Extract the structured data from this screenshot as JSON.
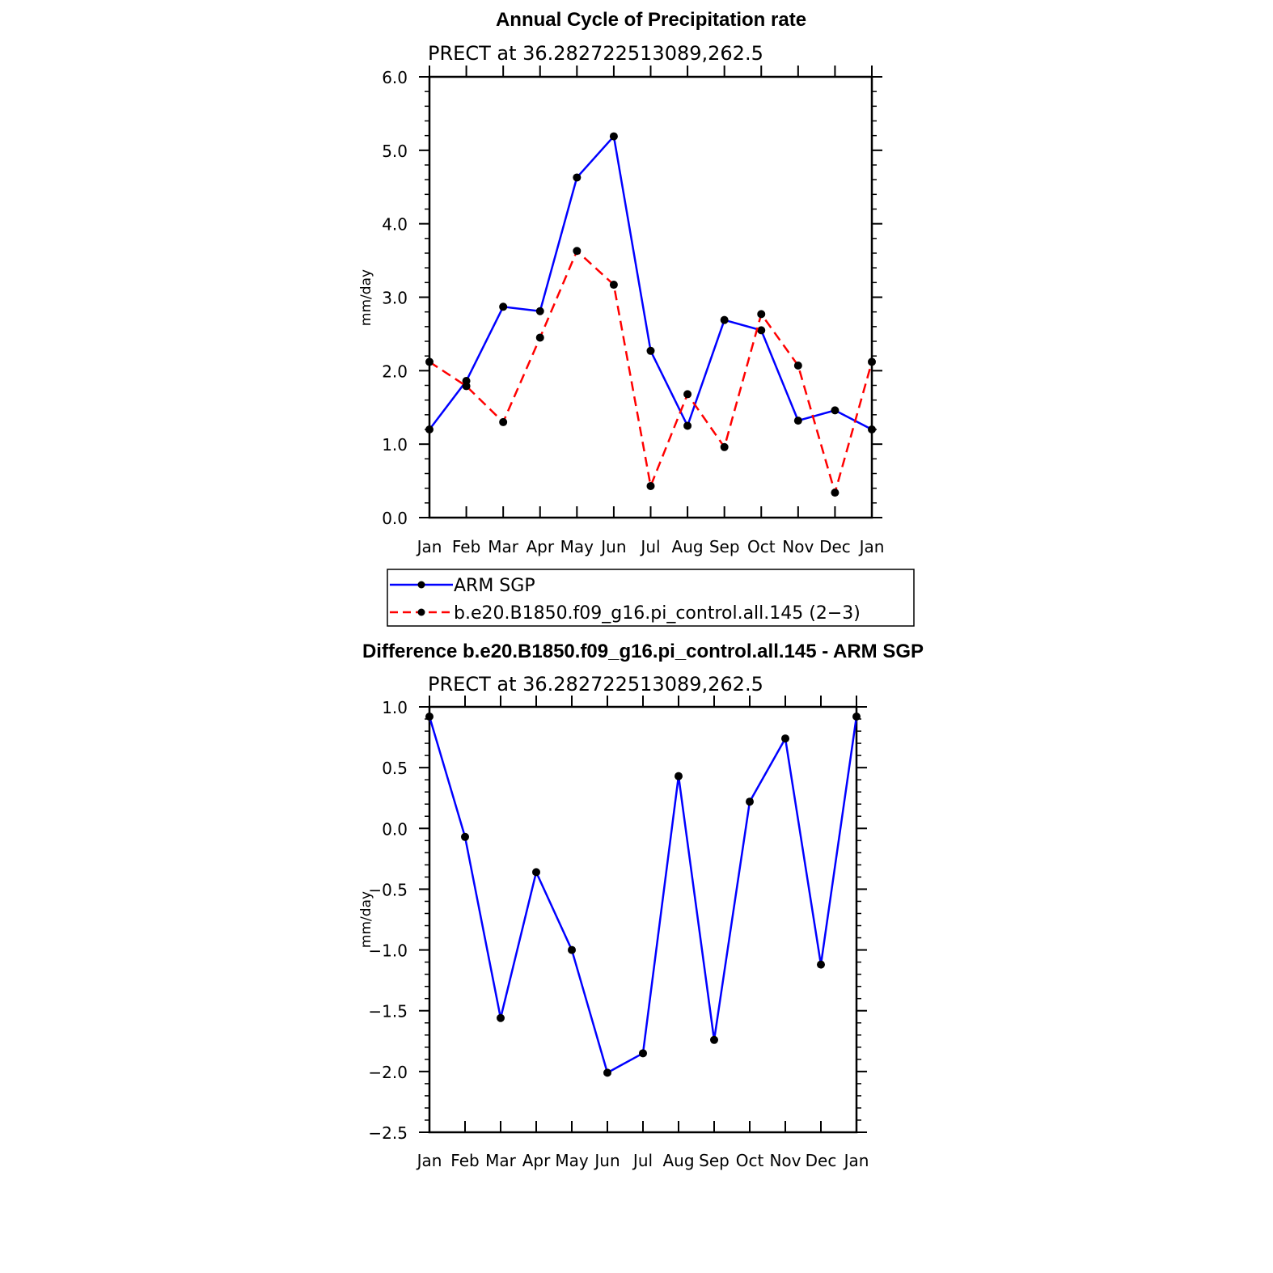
{
  "chart_data": [
    {
      "type": "line",
      "title": "Annual Cycle of Precipitation rate",
      "subtitle": "PRECT at 36.282722513089,262.5",
      "ylabel": "mm/day",
      "xlabel": "",
      "categories": [
        "Jan",
        "Feb",
        "Mar",
        "Apr",
        "May",
        "Jun",
        "Jul",
        "Aug",
        "Sep",
        "Oct",
        "Nov",
        "Dec",
        "Jan"
      ],
      "ylim": [
        0,
        6
      ],
      "ytick_labels": [
        "0.0",
        "1.0",
        "2.0",
        "3.0",
        "4.0",
        "5.0",
        "6.0"
      ],
      "grid": false,
      "legend_placement": "bottom",
      "series": [
        {
          "name": "ARM SGP",
          "color": "#0000ff",
          "dash": "solid",
          "values": [
            1.2,
            1.86,
            2.87,
            2.81,
            4.63,
            5.19,
            2.27,
            1.25,
            2.69,
            2.55,
            1.32,
            1.46,
            1.2
          ]
        },
        {
          "name": "b.e20.B1850.f09_g16.pi_control.all.145 (2−3)",
          "color": "#ff0000",
          "dash": "dashed",
          "values": [
            2.12,
            1.79,
            1.3,
            2.45,
            3.63,
            3.17,
            0.43,
            1.68,
            0.96,
            2.77,
            2.07,
            0.34,
            2.12
          ]
        }
      ]
    },
    {
      "type": "line",
      "title": "Difference b.e20.B1850.f09_g16.pi_control.all.145 - ARM SGP",
      "subtitle": "PRECT at 36.282722513089,262.5",
      "ylabel": "mm/day",
      "xlabel": "",
      "categories": [
        "Jan",
        "Feb",
        "Mar",
        "Apr",
        "May",
        "Jun",
        "Jul",
        "Aug",
        "Sep",
        "Oct",
        "Nov",
        "Dec",
        "Jan"
      ],
      "ylim": [
        -2.5,
        1.0
      ],
      "ytick_labels": [
        "−2.5",
        "−2.0",
        "−1.5",
        "−1.0",
        "−0.5",
        "0.0",
        "0.5",
        "1.0"
      ],
      "grid": false,
      "series": [
        {
          "color": "#0000ff",
          "dash": "solid",
          "values": [
            0.92,
            -0.07,
            -1.56,
            -0.36,
            -1.0,
            -2.01,
            -1.85,
            0.43,
            -1.74,
            0.22,
            0.74,
            -1.12,
            0.92
          ]
        }
      ]
    }
  ]
}
